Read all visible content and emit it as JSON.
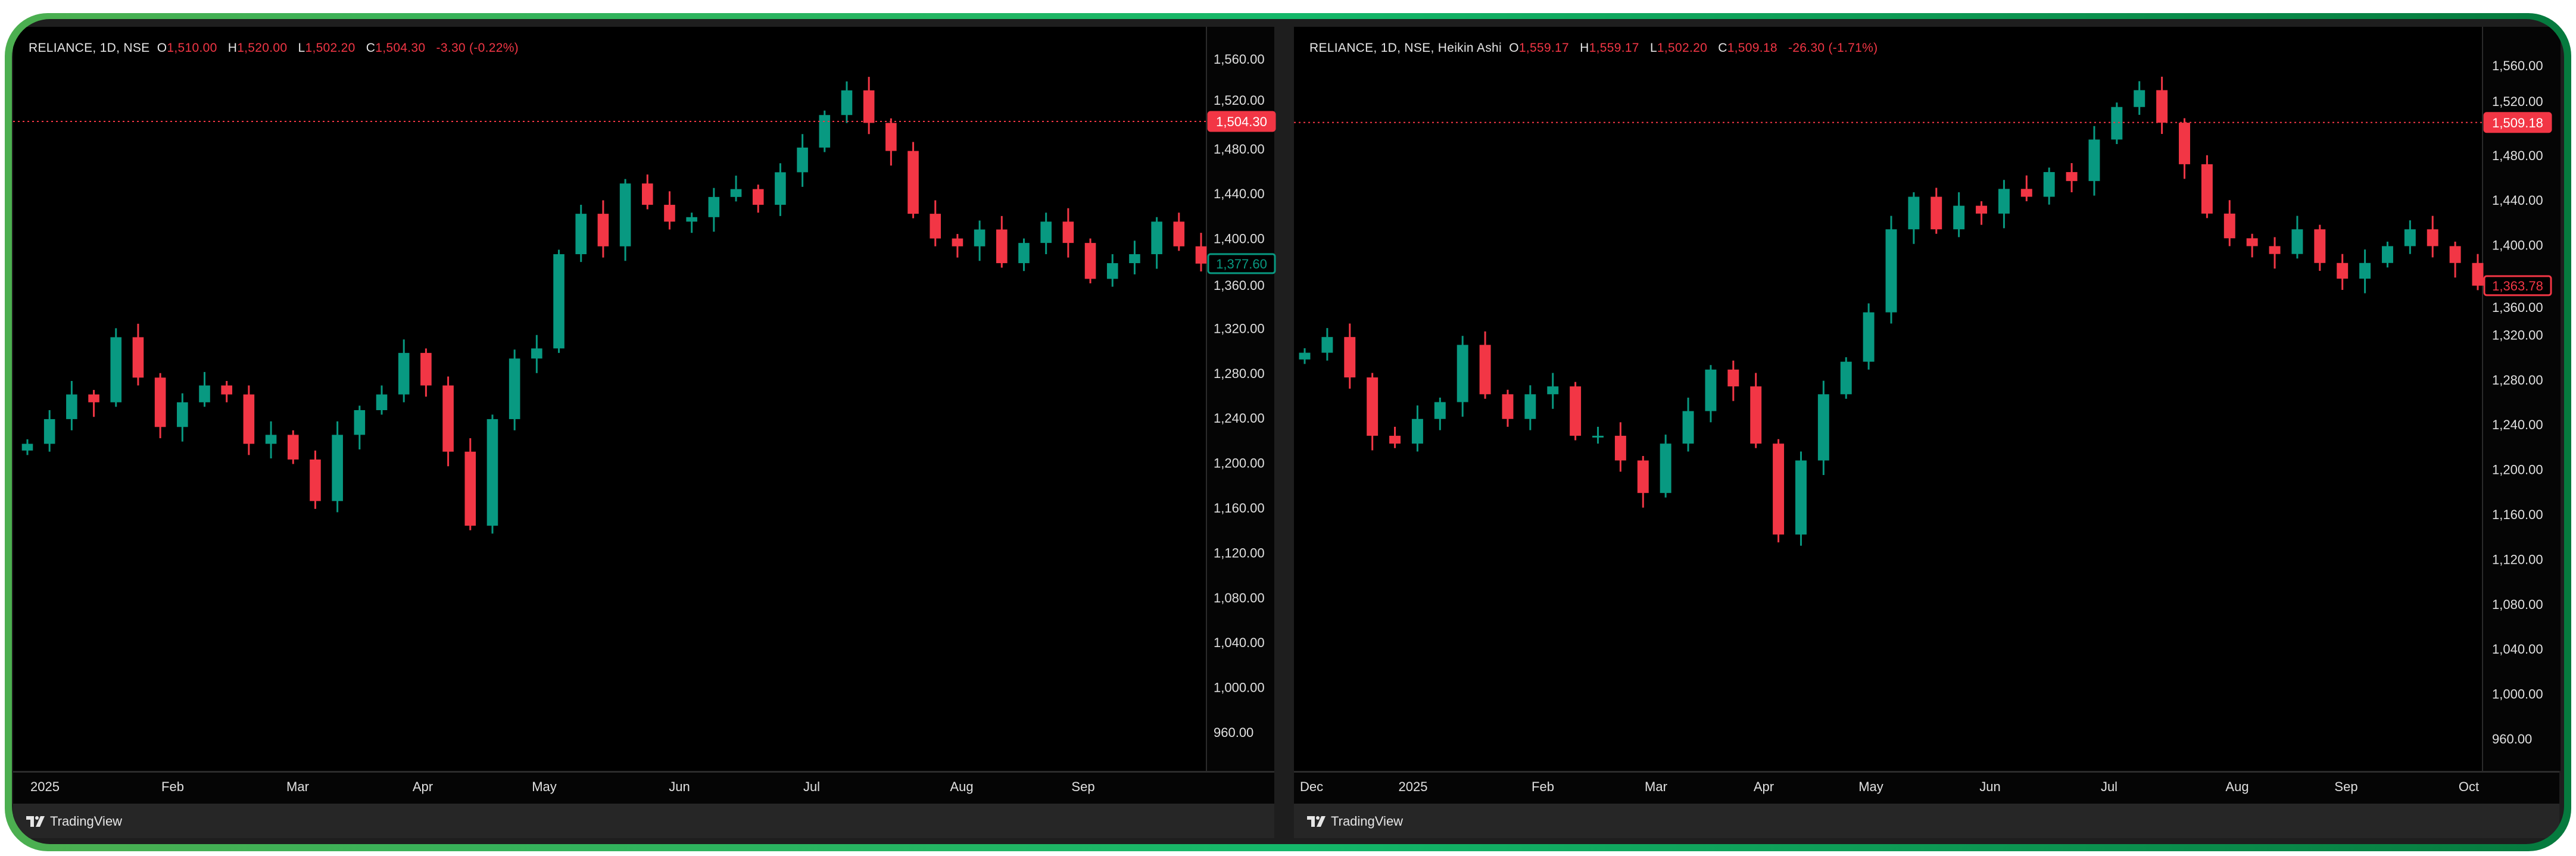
{
  "colors": {
    "up": "#089981",
    "down": "#f23645",
    "background": "#000000",
    "frame_border": "#14b86a"
  },
  "charts": [
    {
      "header": {
        "symbol": "RELIANCE, 1D, NSE",
        "o_label": "O",
        "open": "1,510.00",
        "h_label": "H",
        "high": "1,520.00",
        "l_label": "L",
        "low": "1,502.20",
        "c_label": "C",
        "close": "1,504.30",
        "change": "-3.30 (-0.22%)"
      },
      "footer": {
        "brand": "TradingView",
        "logo_icon": "tradingview-logo-icon"
      }
    },
    {
      "header": {
        "symbol": "RELIANCE, 1D, NSE, Heikin Ashi",
        "o_label": "O",
        "open": "1,559.17",
        "h_label": "H",
        "high": "1,559.17",
        "l_label": "L",
        "low": "1,502.20",
        "c_label": "C",
        "close": "1,509.18",
        "change": "-26.30 (-1.71%)"
      },
      "footer": {
        "brand": "TradingView",
        "logo_icon": "tradingview-logo-icon"
      }
    }
  ],
  "chart_data": [
    {
      "type": "candlestick",
      "style": "Candles",
      "symbol": "RELIANCE",
      "closes": [
        1217,
        1239,
        1261,
        1254,
        1312,
        1276,
        1232,
        1254,
        1269,
        1261,
        1217,
        1225,
        1203,
        1166,
        1225,
        1247,
        1261,
        1298,
        1269,
        1210,
        1144,
        1239,
        1293,
        1302,
        1386,
        1422,
        1393,
        1449,
        1430,
        1415,
        1419,
        1437,
        1444,
        1430,
        1459,
        1481,
        1510,
        1532,
        1503,
        1478,
        1422,
        1400,
        1393,
        1408,
        1378,
        1396,
        1415,
        1396,
        1364,
        1378,
        1386,
        1415,
        1393,
        1377.6
      ],
      "ylim": [
        925,
        1589
      ],
      "y_ticks": [
        "1,560.00",
        "1,520.00",
        "1,480.00",
        "1,440.00",
        "1,400.00",
        "1,360.00",
        "1,320.00",
        "1,280.00",
        "1,240.00",
        "1,200.00",
        "1,160.00",
        "1,120.00",
        "1,080.00",
        "1,040.00",
        "1,000.00",
        "960.00"
      ],
      "x_ticks": [
        "2025",
        "Feb",
        "Mar",
        "Apr",
        "May",
        "Jun",
        "Jul",
        "Aug",
        "Sep"
      ],
      "price_labels": [
        {
          "value": 1504.3,
          "text": "1,504.30",
          "style": "filled",
          "color": "#f23645",
          "line": true
        },
        {
          "value": 1377.6,
          "text": "1,377.60",
          "style": "outline",
          "color": "#089981",
          "line": false
        }
      ],
      "grid": false
    },
    {
      "type": "candlestick",
      "style": "Heikin Ashi",
      "symbol": "RELIANCE",
      "closes": [
        1304,
        1318,
        1282,
        1230,
        1223,
        1245,
        1260,
        1311,
        1267,
        1245,
        1267,
        1274,
        1230,
        1230,
        1208,
        1179,
        1223,
        1252,
        1289,
        1274,
        1223,
        1142,
        1208,
        1267,
        1296,
        1340,
        1414,
        1443,
        1414,
        1435,
        1428,
        1450,
        1443,
        1465,
        1457,
        1494,
        1523,
        1538,
        1509,
        1472,
        1428,
        1406,
        1399,
        1392,
        1414,
        1384,
        1370,
        1384,
        1399,
        1414,
        1399,
        1384,
        1363.78
      ],
      "ylim": [
        925,
        1589
      ],
      "y_ticks": [
        "1,560.00",
        "1,520.00",
        "1,480.00",
        "1,440.00",
        "1,400.00",
        "1,360.00",
        "1,320.00",
        "1,280.00",
        "1,240.00",
        "1,200.00",
        "1,160.00",
        "1,120.00",
        "1,080.00",
        "1,040.00",
        "1,000.00",
        "960.00"
      ],
      "x_ticks": [
        "Dec",
        "2025",
        "Feb",
        "Mar",
        "Apr",
        "May",
        "Jun",
        "Jul",
        "Aug",
        "Sep",
        "Oct"
      ],
      "price_labels": [
        {
          "value": 1509.18,
          "text": "1,509.18",
          "style": "filled",
          "color": "#f23645",
          "line": true
        },
        {
          "value": 1363.78,
          "text": "1,363.78",
          "style": "outline",
          "color": "#f23645",
          "line": false
        }
      ],
      "grid": false
    }
  ]
}
